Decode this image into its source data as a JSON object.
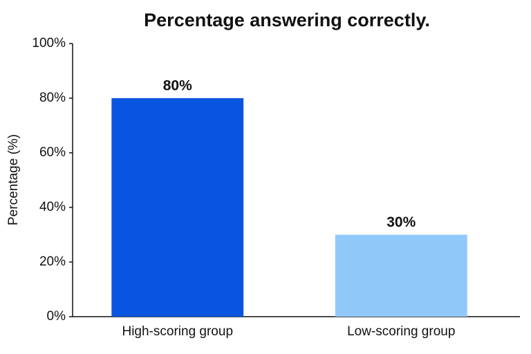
{
  "chart_data": {
    "type": "bar",
    "title": "Percentage answering correctly.",
    "y_label": "Percentage (%)",
    "categories": [
      "High-scoring group",
      "Low-scoring group"
    ],
    "values": [
      80,
      30
    ],
    "value_labels": [
      "80%",
      "30%"
    ],
    "colors": [
      "#0a55e0",
      "#90c8fa"
    ],
    "ylim": [
      0,
      100
    ],
    "yticks": [
      {
        "value": 0,
        "label": "0%"
      },
      {
        "value": 20,
        "label": "20%"
      },
      {
        "value": 40,
        "label": "40%"
      },
      {
        "value": 60,
        "label": "60%"
      },
      {
        "value": 80,
        "label": "80%"
      },
      {
        "value": 100,
        "label": "100%"
      }
    ],
    "grid": false
  }
}
